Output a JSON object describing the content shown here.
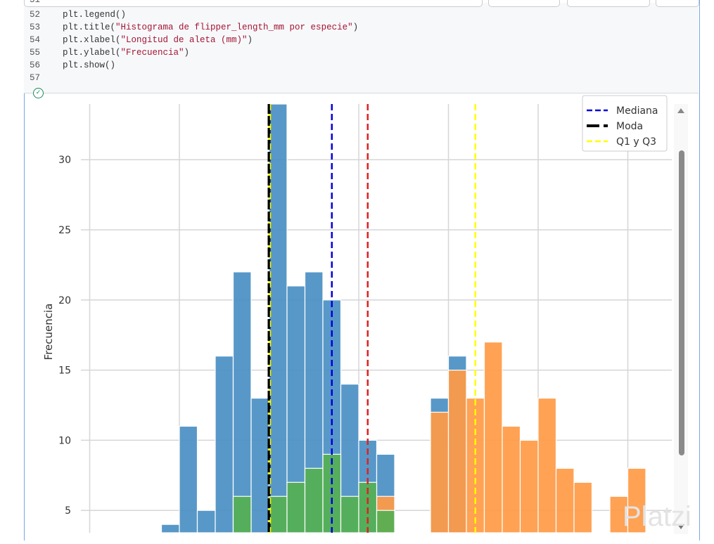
{
  "code": {
    "partial_line_number": "51",
    "lines": [
      {
        "n": "52",
        "pre": "plt.legend()",
        "str": "",
        "post": ""
      },
      {
        "n": "53",
        "pre": "plt.title(",
        "str": "\"Histograma de flipper_length_mm por especie\"",
        "post": ")"
      },
      {
        "n": "54",
        "pre": "plt.xlabel(",
        "str": "\"Longitud de aleta (mm)\"",
        "post": ")"
      },
      {
        "n": "55",
        "pre": "plt.ylabel(",
        "str": "\"Frecuencia\"",
        "post": ")"
      },
      {
        "n": "56",
        "pre": "plt.show()",
        "str": "",
        "post": ""
      },
      {
        "n": "57",
        "pre": "",
        "str": "",
        "post": ""
      }
    ],
    "run_status_icon": "check-circle-icon"
  },
  "watermark": "Platzi",
  "chart_data": {
    "type": "bar",
    "ylabel": "Frecuencia",
    "yticks": [
      5,
      10,
      15,
      20,
      25,
      30
    ],
    "ylim_visible": [
      3.4,
      34
    ],
    "xgrid": [
      170,
      180,
      190,
      200,
      210,
      220,
      230
    ],
    "bin_width": 2,
    "series": [
      {
        "name": "blue",
        "color": "#4a8fc3",
        "bins": [
          [
            178,
            4
          ],
          [
            180,
            11
          ],
          [
            182,
            5
          ],
          [
            184,
            16
          ],
          [
            186,
            22
          ],
          [
            188,
            13
          ],
          [
            190,
            34
          ],
          [
            192,
            21
          ],
          [
            194,
            22
          ],
          [
            196,
            20
          ],
          [
            198,
            14
          ],
          [
            200,
            10
          ],
          [
            202,
            9
          ],
          [
            208,
            13
          ],
          [
            210,
            16
          ]
        ]
      },
      {
        "name": "orange",
        "color": "#ff9a45",
        "bins": [
          [
            202,
            6
          ],
          [
            208,
            12
          ],
          [
            210,
            15
          ],
          [
            212,
            13
          ],
          [
            214,
            17
          ],
          [
            216,
            11
          ],
          [
            218,
            10
          ],
          [
            220,
            13
          ],
          [
            222,
            8
          ],
          [
            224,
            7
          ],
          [
            228,
            6
          ],
          [
            230,
            8
          ]
        ]
      },
      {
        "name": "green",
        "color": "#55b052",
        "bins": [
          [
            186,
            6
          ],
          [
            190,
            6
          ],
          [
            192,
            7
          ],
          [
            194,
            8
          ],
          [
            196,
            9
          ],
          [
            198,
            6
          ],
          [
            200,
            7
          ],
          [
            202,
            5
          ]
        ]
      }
    ],
    "vlines": [
      {
        "label": "Q1 y Q3",
        "x": 190,
        "color": "#ffff00",
        "style": "dashed"
      },
      {
        "label": "Q1 y Q3",
        "x": 213,
        "color": "#ffff00",
        "style": "dashed"
      },
      {
        "label": "Moda",
        "x": 190,
        "color": "#000000",
        "style": "dashed-thick"
      },
      {
        "label": "Mediana",
        "x": 197,
        "color": "#0000dd",
        "style": "dashed"
      },
      {
        "label": "",
        "x": 201,
        "color": "#e02020",
        "style": "dashed"
      }
    ],
    "legend": {
      "placement": "top-right",
      "entries": [
        {
          "label": "Mediana",
          "color": "#0000dd"
        },
        {
          "label": "Moda",
          "color": "#000000"
        },
        {
          "label": "Q1 y Q3",
          "color": "#ffff00"
        }
      ]
    }
  }
}
